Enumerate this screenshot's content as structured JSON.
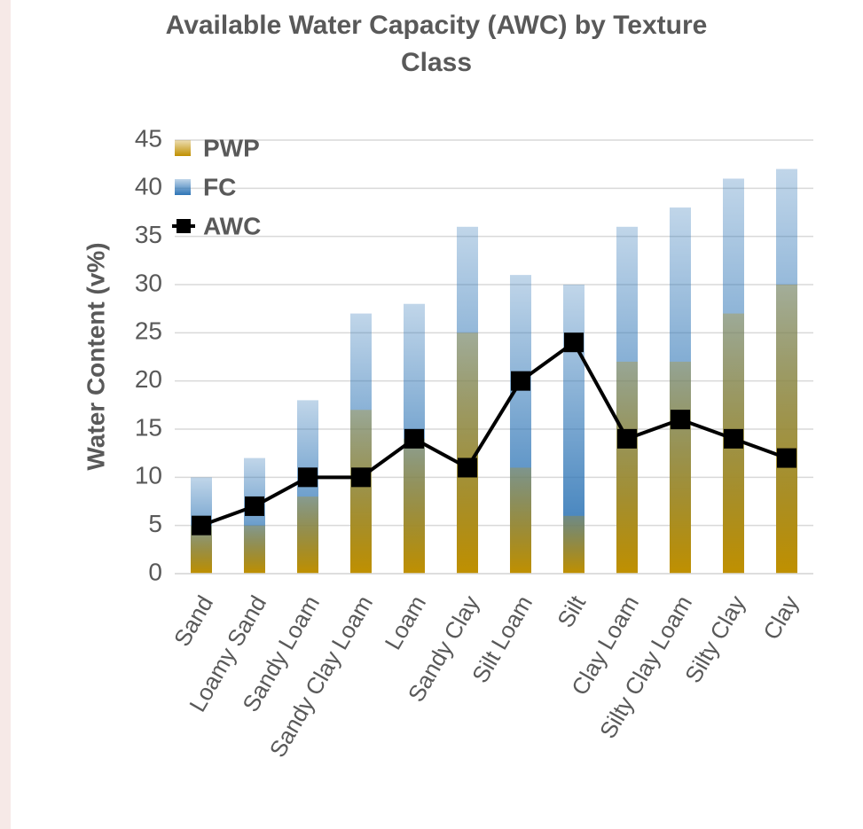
{
  "chart_data": {
    "type": "bar",
    "title": "Available Water Capacity (AWC) by Texture Class",
    "ylabel": "Water Content (v%)",
    "categories": [
      "Sand",
      "Loamy Sand",
      "Sandy Loam",
      "Sandy Clay Loam",
      "Loam",
      "Sandy Clay",
      "Silt Loam",
      "Silt",
      "Clay Loam",
      "Silty Clay Loam",
      "Silty Clay",
      "Clay"
    ],
    "series": [
      {
        "name": "PWP",
        "color": "#c09000",
        "values": [
          5,
          5,
          8,
          17,
          14,
          25,
          11,
          6,
          22,
          22,
          27,
          30
        ]
      },
      {
        "name": "FC",
        "color": "#2e75b6",
        "values": [
          10,
          12,
          18,
          27,
          28,
          36,
          31,
          30,
          36,
          38,
          41,
          42
        ]
      },
      {
        "name": "AWC",
        "type": "line",
        "color": "#000000",
        "values": [
          5,
          7,
          10,
          10,
          14,
          11,
          20,
          24,
          14,
          16,
          14,
          12
        ]
      }
    ],
    "ylim": [
      0,
      45
    ],
    "yticks": [
      0,
      5,
      10,
      15,
      20,
      25,
      30,
      35,
      40,
      45
    ],
    "grid": true,
    "legend": "top-left"
  }
}
